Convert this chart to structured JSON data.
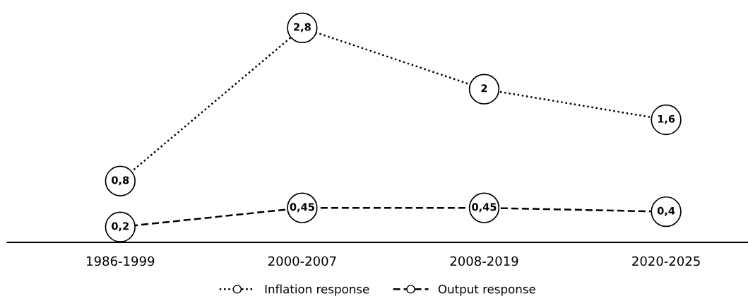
{
  "chart_data": {
    "type": "line",
    "categories": [
      "1986-1999",
      "2000-2007",
      "2008-2019",
      "2020-2025"
    ],
    "series": [
      {
        "name": "Inflation response",
        "color": "#000000",
        "line_style": "dotted",
        "values": [
          0.8,
          2.8,
          2,
          1.6
        ],
        "value_labels": [
          "0,8",
          "2,8",
          "2",
          "1,6"
        ]
      },
      {
        "name": "Output response",
        "color": "#000000",
        "line_style": "dashed",
        "values": [
          0.2,
          0.45,
          0.45,
          0.4
        ],
        "value_labels": [
          "0,2",
          "0,45",
          "0,45",
          "0,4"
        ]
      }
    ],
    "marker": "circle",
    "legend": "bottom",
    "grid": false,
    "tick_labels": "x"
  }
}
